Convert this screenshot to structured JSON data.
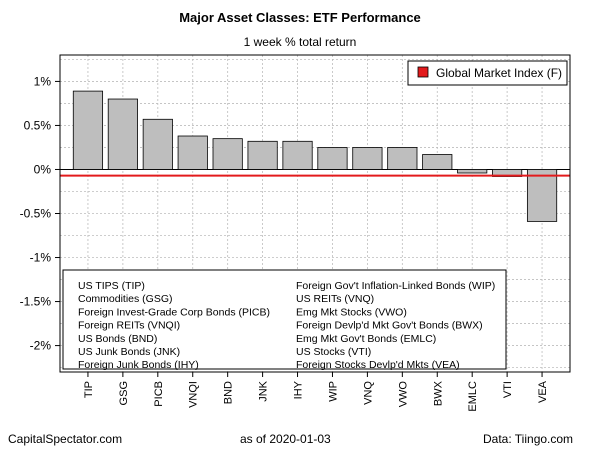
{
  "chart_data": {
    "type": "bar",
    "title": "Major Asset Classes: ETF Performance",
    "subtitle": "1 week % total return",
    "categories": [
      "TIP",
      "GSG",
      "PICB",
      "VNQI",
      "BND",
      "JNK",
      "IHY",
      "WIP",
      "VNQ",
      "VWO",
      "BWX",
      "EMLC",
      "VTI",
      "VEA"
    ],
    "values": [
      0.89,
      0.8,
      0.57,
      0.38,
      0.35,
      0.32,
      0.32,
      0.25,
      0.25,
      0.25,
      0.17,
      -0.04,
      -0.08,
      -0.59
    ],
    "ylim": [
      -2.3,
      1.3
    ],
    "yticks": [
      1,
      0.5,
      0,
      -0.5,
      -1,
      -1.5,
      -2
    ],
    "ytick_labels": [
      "1%",
      "0.5%",
      "0%",
      "-0.5%",
      "-1%",
      "-1.5%",
      "-2%"
    ],
    "reference_line": {
      "name": "Global Market Index (F)",
      "value": -0.07,
      "color": "#e31a1c"
    },
    "legend": {
      "position": "top-right",
      "label": "Global Market Index (F)"
    },
    "grid": true,
    "bar_color": "#bebebe",
    "key_left": [
      "US TIPS (TIP)",
      "Commodities (GSG)",
      "Foreign Invest-Grade Corp Bonds (PICB)",
      "Foreign REITs (VNQI)",
      "US Bonds (BND)",
      "US Junk Bonds (JNK)",
      "Foreign Junk Bonds (IHY)"
    ],
    "key_right": [
      "Foreign Gov't Inflation-Linked Bonds (WIP)",
      "US REITs (VNQ)",
      "Emg Mkt Stocks (VWO)",
      "Foreign Devlp'd Mkt Gov't Bonds (BWX)",
      "Emg Mkt Gov't Bonds (EMLC)",
      "US Stocks (VTI)",
      "Foreign Stocks Devlp'd Mkts (VEA)"
    ]
  },
  "footer": {
    "source_left": "CapitalSpectator.com",
    "date": "as of   2020-01-03",
    "source_right": "Data: Tiingo.com"
  }
}
